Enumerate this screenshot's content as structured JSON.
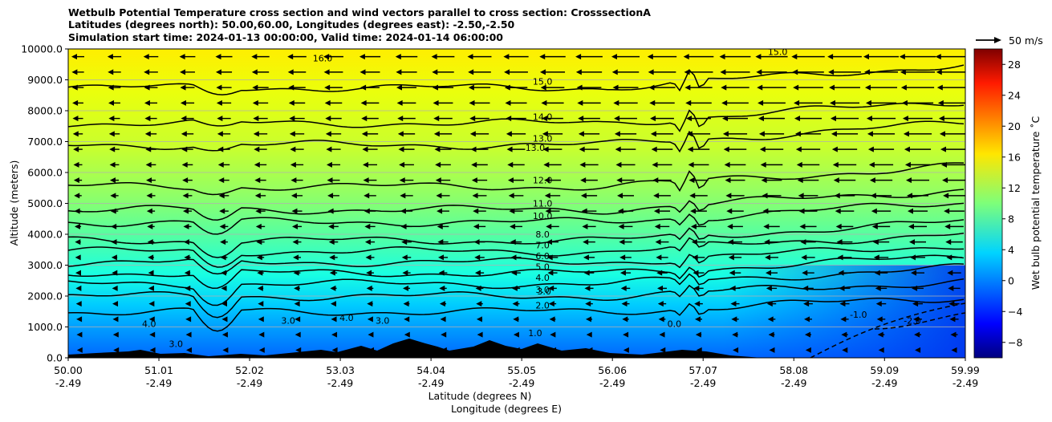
{
  "chart_data": {
    "type": "heatmap",
    "title_lines": [
      "Wetbulb Potential Temperature cross section and wind vectors parallel to cross section: CrosssectionA",
      "Latitudes (degrees north): 50.00,60.00, Longitudes (degrees east): -2.50,-2.50",
      "Simulation start time: 2024-01-13 00:00:00, Valid time: 2024-01-14 06:00:00"
    ],
    "xlabel_1": "Latitude (degrees N)",
    "xlabel_2": "Longitude (degrees E)",
    "ylabel": "Altitude (meters)",
    "x_ticks": [
      {
        "lat": 50.0,
        "label_lat": "50.00",
        "label_lon": "-2.49"
      },
      {
        "lat": 51.01,
        "label_lat": "51.01",
        "label_lon": "-2.49"
      },
      {
        "lat": 52.02,
        "label_lat": "52.02",
        "label_lon": "-2.49"
      },
      {
        "lat": 53.03,
        "label_lat": "53.03",
        "label_lon": "-2.49"
      },
      {
        "lat": 54.04,
        "label_lat": "54.04",
        "label_lon": "-2.49"
      },
      {
        "lat": 55.05,
        "label_lat": "55.05",
        "label_lon": "-2.49"
      },
      {
        "lat": 56.06,
        "label_lat": "56.06",
        "label_lon": "-2.49"
      },
      {
        "lat": 57.07,
        "label_lat": "57.07",
        "label_lon": "-2.49"
      },
      {
        "lat": 58.08,
        "label_lat": "58.08",
        "label_lon": "-2.49"
      },
      {
        "lat": 59.09,
        "label_lat": "59.09",
        "label_lon": "-2.49"
      },
      {
        "lat": 59.99,
        "label_lat": "59.99",
        "label_lon": "-2.49"
      }
    ],
    "xlim": [
      50.0,
      59.99
    ],
    "y_ticks": [
      0,
      1000,
      2000,
      3000,
      4000,
      5000,
      6000,
      7000,
      8000,
      9000,
      10000
    ],
    "y_tick_labels": [
      "0.0",
      "1000.0",
      "2000.0",
      "3000.0",
      "4000.0",
      "5000.0",
      "6000.0",
      "7000.0",
      "8000.0",
      "9000.0",
      "10000.0"
    ],
    "ylim": [
      0,
      10000
    ],
    "grid": "horizontal",
    "colorbar": {
      "label": "Wet bulb potential temperature ˚C",
      "range": [
        -10,
        30
      ],
      "ticks": [
        -8,
        -4,
        0,
        4,
        8,
        12,
        16,
        20,
        24,
        28
      ],
      "tick_labels": [
        "−8",
        "−4",
        "0",
        "4",
        "8",
        "12",
        "16",
        "20",
        "24",
        "28"
      ],
      "colormap": "jet"
    },
    "quiver_key": {
      "label": "50 m/s",
      "speed": 50
    },
    "contour_levels": [
      {
        "value": 2.0,
        "label": "2.0",
        "label_lat": 55.05,
        "label_alt": 1600
      },
      {
        "value": 3.0,
        "label": "3.0",
        "label_lat": 55.05,
        "label_alt": 2100
      },
      {
        "value": 4.0,
        "label": "4.0",
        "label_lat": 55.05,
        "label_alt": 2500
      },
      {
        "value": 5.0,
        "label": "5.0",
        "label_lat": 55.05,
        "label_alt": 2850
      },
      {
        "value": 6.0,
        "label": "6.0",
        "label_lat": 55.05,
        "label_alt": 3200
      },
      {
        "value": 7.0,
        "label": "7.0",
        "label_lat": 55.05,
        "label_alt": 3550
      },
      {
        "value": 8.0,
        "label": "8.0",
        "label_lat": 55.05,
        "label_alt": 3900
      },
      {
        "value": 10.0,
        "label": "10.0",
        "label_lat": 55.05,
        "label_alt": 4500
      },
      {
        "value": 11.0,
        "label": "11.0",
        "label_lat": 55.05,
        "label_alt": 4900
      },
      {
        "value": 12.0,
        "label": "12.0",
        "label_lat": 55.05,
        "label_alt": 5650
      },
      {
        "value": 13.0,
        "label": "13.0",
        "label_lat": 55.05,
        "label_alt": 7000
      },
      {
        "value": 14.0,
        "label": "14.0",
        "label_lat": 55.05,
        "label_alt": 7700
      },
      {
        "value": 15.0,
        "label": "15.0",
        "label_lat": 55.05,
        "label_alt": 8850
      },
      {
        "value": 16.0,
        "label": "16.0",
        "label_lat": 52.6,
        "label_alt": 9600
      }
    ],
    "extra_contour_labels": [
      {
        "label": "4.0",
        "lat": 50.9,
        "alt": 1000
      },
      {
        "label": "4.0",
        "lat": 53.1,
        "alt": 1200
      },
      {
        "label": "3.0",
        "lat": 52.45,
        "alt": 1100
      },
      {
        "label": "3.0",
        "lat": 53.5,
        "alt": 1100
      },
      {
        "label": "3.0",
        "lat": 51.2,
        "alt": 350
      },
      {
        "label": "1.0",
        "lat": 55.2,
        "alt": 700
      },
      {
        "label": "0.0",
        "lat": 56.75,
        "alt": 1000
      },
      {
        "label": "-1.0",
        "lat": 58.8,
        "alt": 1300
      },
      {
        "label": "-2.0",
        "lat": 59.4,
        "alt": 1100
      },
      {
        "label": "3.0",
        "lat": 55.3,
        "alt": 2050
      },
      {
        "label": "13.0",
        "lat": 55.2,
        "alt": 6700
      },
      {
        "label": "15.0",
        "lat": 57.9,
        "alt": 9800
      }
    ]
  }
}
